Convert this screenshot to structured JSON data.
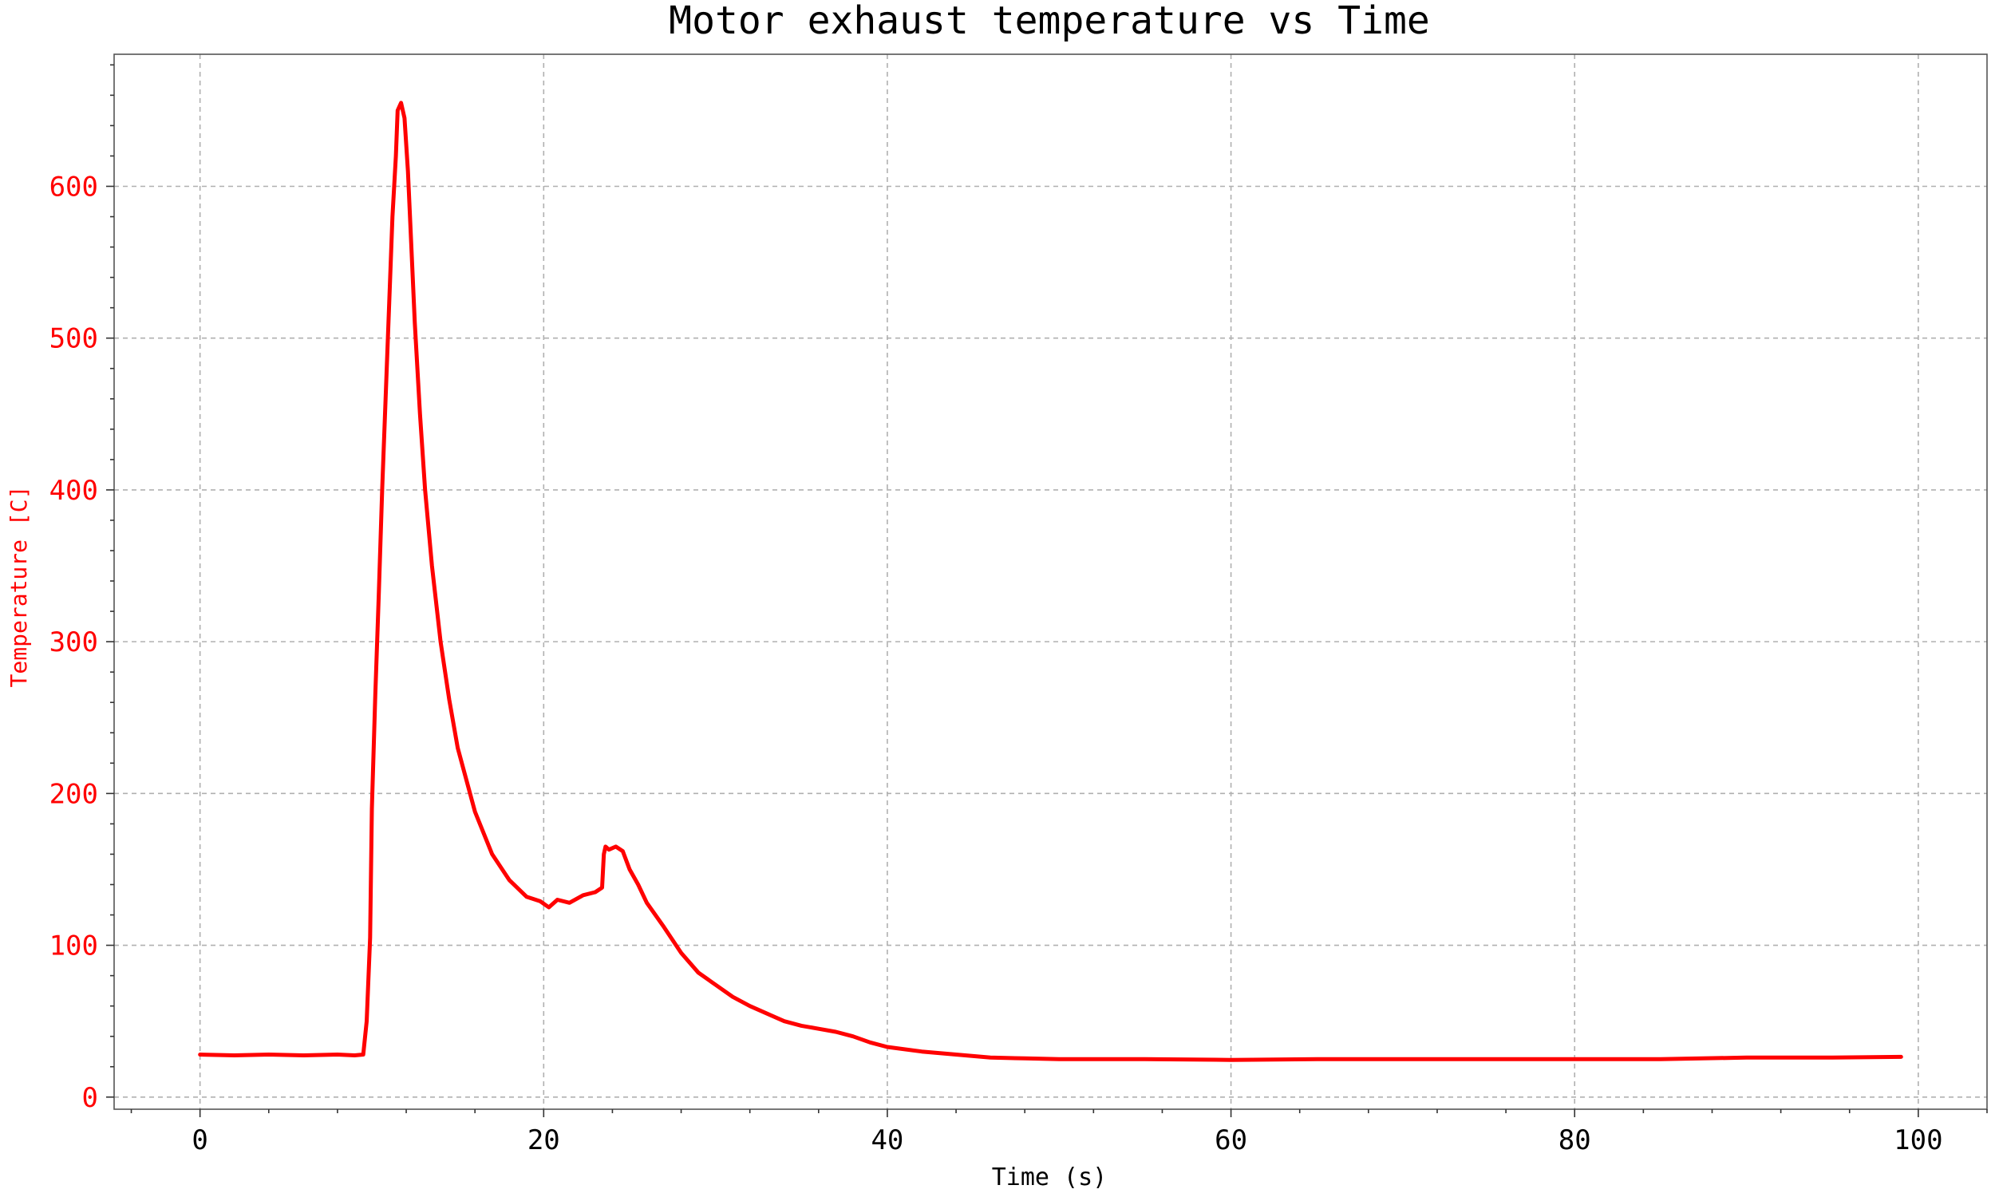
{
  "chart_data": {
    "type": "line",
    "title": "Motor exhaust temperature vs Time",
    "xlabel": "Time (s)",
    "ylabel": "Temperature [C]",
    "xlim": [
      -5,
      104
    ],
    "ylim": [
      -8,
      687
    ],
    "x_ticks": [
      0,
      20,
      40,
      60,
      80,
      100
    ],
    "y_ticks": [
      0,
      100,
      200,
      300,
      400,
      500,
      600
    ],
    "x_tick_labels": [
      "0",
      "20",
      "40",
      "60",
      "80",
      "100"
    ],
    "y_tick_labels": [
      "0",
      "100",
      "200",
      "300",
      "400",
      "500",
      "600"
    ],
    "grid": true,
    "line_color": "#ff0000",
    "ylabel_color": "#ff0000",
    "series": [
      {
        "x": [
          0,
          2,
          4,
          6,
          8,
          9,
          9.5,
          9.7,
          9.9,
          10.0,
          10.2,
          10.4,
          10.6,
          10.8,
          11.0,
          11.2,
          11.4,
          11.5,
          11.7,
          11.9,
          12.1,
          12.3,
          12.5,
          12.8,
          13.1,
          13.5,
          14.0,
          14.5,
          15.0,
          16.0,
          17.0,
          18.0,
          19.0,
          19.8,
          20.3,
          20.8,
          21.5,
          22.3,
          23.0,
          23.4,
          23.5,
          23.6,
          23.8,
          24.2,
          24.6,
          25.0,
          25.5,
          26.0,
          27.0,
          28.0,
          29.0,
          30.0,
          31.0,
          32.0,
          33.0,
          34.0,
          35.0,
          36.0,
          37.0,
          38.0,
          39.0,
          40.0,
          42.0,
          44.0,
          46.0,
          48.0,
          50.0,
          55.0,
          60.0,
          65.0,
          70.0,
          75.0,
          80.0,
          85.0,
          90.0,
          95.0,
          99.0
        ],
        "y": [
          28,
          27.5,
          28,
          27.5,
          28,
          27.5,
          28,
          50,
          105,
          190,
          265,
          330,
          400,
          460,
          520,
          580,
          620,
          650,
          655,
          645,
          610,
          560,
          510,
          450,
          400,
          350,
          300,
          262,
          230,
          188,
          160,
          143,
          132,
          129,
          125,
          130,
          128,
          133,
          135,
          138,
          160,
          165,
          163,
          165,
          162,
          150,
          140,
          128,
          112,
          95,
          82,
          74,
          66,
          60,
          55,
          50,
          47,
          45,
          43,
          40,
          36,
          33,
          30,
          28,
          26,
          25.5,
          25,
          25,
          24.5,
          25,
          25,
          25,
          25,
          25,
          26,
          26,
          26.5
        ]
      }
    ]
  }
}
